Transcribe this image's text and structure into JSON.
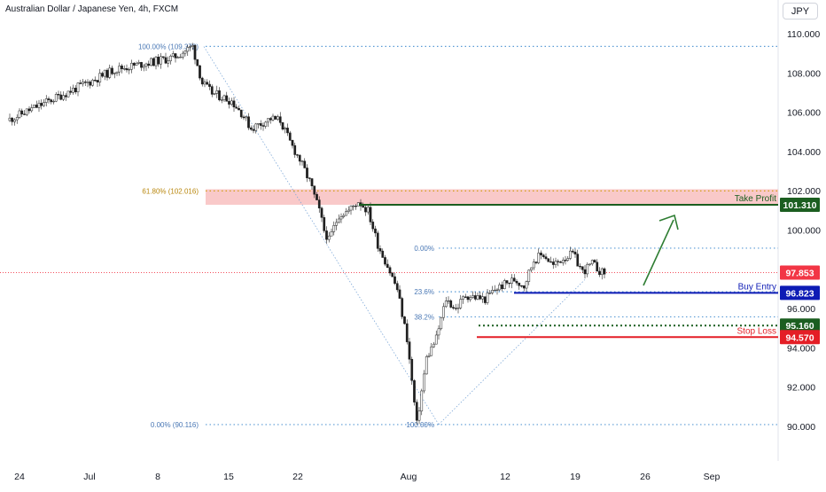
{
  "chart_data": {
    "type": "candlestick",
    "title": "Australian Dollar / Japanese Yen, 4h, FXCM",
    "currency": "JPY",
    "ylim": [
      89.4,
      111.0
    ],
    "y_ticks": [
      {
        "value": 110,
        "label": "110.000"
      },
      {
        "value": 108,
        "label": "108.000"
      },
      {
        "value": 106,
        "label": "106.000"
      },
      {
        "value": 104,
        "label": "104.000"
      },
      {
        "value": 102,
        "label": "102.000"
      },
      {
        "value": 100,
        "label": "100.000"
      },
      {
        "value": 96,
        "label": "96.000"
      },
      {
        "value": 94,
        "label": "94.000"
      },
      {
        "value": 92,
        "label": "92.000"
      },
      {
        "value": 90,
        "label": "90.000"
      }
    ],
    "x_range_days": [
      -1,
      45
    ],
    "x_ticks": [
      {
        "day": 0,
        "label": "24"
      },
      {
        "day": 7,
        "label": "Jul"
      },
      {
        "day": 14,
        "label": "8"
      },
      {
        "day": 21,
        "label": "15"
      },
      {
        "day": 28,
        "label": "22"
      },
      {
        "day": 38,
        "label": "Aug"
      },
      {
        "day": 49,
        "label": "12"
      },
      {
        "day": 56,
        "label": "19"
      },
      {
        "day": 63,
        "label": "26"
      },
      {
        "day": 70,
        "label": "Sep"
      }
    ],
    "price_path": [
      [
        -1,
        105.6
      ],
      [
        2,
        106.3
      ],
      [
        5,
        107.0
      ],
      [
        8,
        107.7
      ],
      [
        10,
        108.2
      ],
      [
        13,
        108.5
      ],
      [
        16,
        108.8
      ],
      [
        18,
        109.37
      ],
      [
        19,
        107.5
      ],
      [
        20,
        107.0
      ],
      [
        22,
        106.6
      ],
      [
        23,
        106.0
      ],
      [
        24,
        105.2
      ],
      [
        26,
        105.7
      ],
      [
        27,
        105.6
      ],
      [
        28,
        104.5
      ],
      [
        29,
        103.6
      ],
      [
        30,
        102.5
      ],
      [
        31,
        101.0
      ],
      [
        31.5,
        100.0
      ],
      [
        32,
        99.5
      ],
      [
        33,
        100.8
      ],
      [
        34,
        101.0
      ],
      [
        35,
        101.5
      ],
      [
        36,
        101.0
      ],
      [
        37,
        99.3
      ],
      [
        38,
        98.2
      ],
      [
        39,
        97.0
      ],
      [
        40,
        94.5
      ],
      [
        41,
        90.12
      ],
      [
        42,
        93.5
      ],
      [
        43,
        94.5
      ],
      [
        44,
        96.5
      ],
      [
        45,
        96.0
      ],
      [
        46,
        96.7
      ],
      [
        48,
        96.5
      ],
      [
        49,
        97.0
      ],
      [
        51,
        97.5
      ],
      [
        52,
        97.2
      ],
      [
        53,
        98.5
      ],
      [
        54,
        98.8
      ],
      [
        55,
        98.2
      ],
      [
        56,
        98.6
      ],
      [
        57,
        98.8
      ],
      [
        58,
        97.9
      ],
      [
        59,
        98.3
      ],
      [
        60,
        97.85
      ]
    ],
    "fibonacci_down": [
      {
        "label": "100.00% (109.372)",
        "value": 109.372
      },
      {
        "label": "61.80% (102.016)",
        "value": 102.016
      },
      {
        "label": "0.00% (90.116)",
        "value": 90.116
      }
    ],
    "fibonacci_up": [
      {
        "label": "0.00%",
        "value": 99.1
      },
      {
        "label": "23.6%",
        "value": 96.88
      },
      {
        "label": "38.2%",
        "value": 95.6
      },
      {
        "label": "100.00%",
        "value": 90.116
      }
    ],
    "levels": [
      {
        "name": "Take Profit",
        "value": 101.31,
        "label": "101.310",
        "color": "#1b5e20"
      },
      {
        "name": "Buy Entry",
        "value": 96.823,
        "label": "96.823",
        "color": "#0d1bb5"
      },
      {
        "name": "",
        "value": 95.16,
        "label": "95.160",
        "color": "#1b5e20"
      },
      {
        "name": "Stop Loss",
        "value": 94.57,
        "label": "94.570",
        "color": "#e41e26"
      }
    ],
    "current_price": {
      "value": 97.853,
      "label": "97.853",
      "color": "#f23645"
    },
    "resistance_zone": [
      101.31,
      102.1
    ]
  }
}
